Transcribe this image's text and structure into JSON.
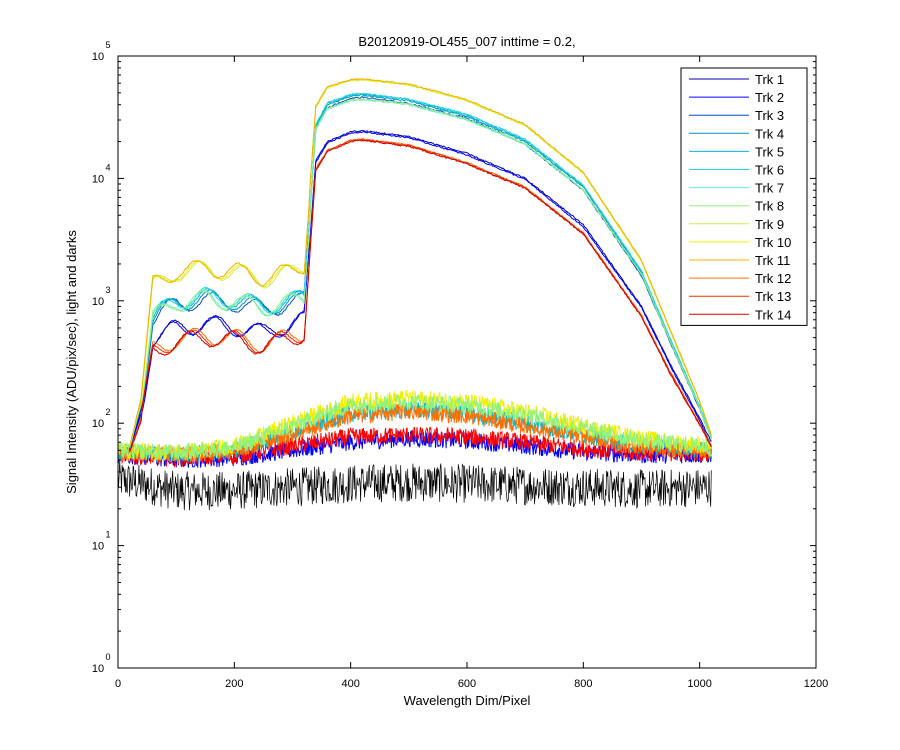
{
  "chart_data": {
    "type": "line",
    "title": "B20120919-OL455_007 inttime = 0.2,",
    "xlabel": "Wavelength Dim/Pixel",
    "ylabel": "Signal Intensity (ADU/pix/sec), light and darks",
    "xlim": [
      0,
      1200
    ],
    "ylim": [
      1,
      100000
    ],
    "yscale": "log",
    "xticks": [
      "0",
      "200",
      "400",
      "600",
      "800",
      "1000",
      "1200"
    ],
    "yticks": [
      {
        "base": "10",
        "exp": "0"
      },
      {
        "base": "10",
        "exp": "1"
      },
      {
        "base": "10",
        "exp": "2"
      },
      {
        "base": "10",
        "exp": "3"
      },
      {
        "base": "10",
        "exp": "4"
      },
      {
        "base": "10",
        "exp": "5"
      }
    ],
    "grid": false,
    "legend_position": "top-right",
    "colors": {
      "Trk 1": "#0000b0",
      "Trk 2": "#0000ff",
      "Trk 3": "#0050c8",
      "Trk 4": "#0090c0",
      "Trk 5": "#00b8d0",
      "Trk 6": "#20d8e0",
      "Trk 7": "#60f0d8",
      "Trk 8": "#90f080",
      "Trk 9": "#c8f050",
      "Trk 10": "#f0f000",
      "Trk 11": "#f0b000",
      "Trk 12": "#ff7000",
      "Trk 13": "#f03000",
      "Trk 14": "#d00000",
      "darks": "#000000"
    },
    "series": [
      {
        "name": "Trk 1",
        "x": [
          20,
          40,
          60,
          100,
          150,
          200,
          250,
          300,
          320,
          340,
          360,
          400,
          420,
          500,
          600,
          700,
          800,
          900,
          950,
          1000,
          1020
        ],
        "y": [
          60,
          130,
          500,
          600,
          650,
          620,
          550,
          650,
          700,
          14000,
          20000,
          24000,
          24500,
          22000,
          16000,
          10000,
          4200,
          900,
          300,
          110,
          70
        ]
      },
      {
        "name": "Trk 2",
        "x": [
          20,
          40,
          60,
          100,
          150,
          200,
          250,
          300,
          320,
          340,
          360,
          400,
          420,
          500,
          600,
          700,
          800,
          900,
          950,
          1000,
          1020
        ],
        "y": [
          60,
          120,
          480,
          590,
          640,
          600,
          540,
          640,
          690,
          13500,
          19500,
          23500,
          24000,
          21500,
          15500,
          9800,
          4000,
          880,
          290,
          105,
          65
        ]
      },
      {
        "name": "Trk 3",
        "x": [
          20,
          40,
          60,
          100,
          150,
          200,
          250,
          300,
          320,
          340,
          360,
          400,
          420,
          500,
          600,
          700,
          800,
          900,
          950,
          1000,
          1020
        ],
        "y": [
          62,
          140,
          700,
          950,
          1000,
          950,
          850,
          950,
          1000,
          25000,
          38000,
          45000,
          46000,
          41000,
          31000,
          19000,
          8000,
          1600,
          450,
          130,
          75
        ]
      },
      {
        "name": "Trk 4",
        "x": [
          20,
          40,
          60,
          100,
          150,
          200,
          250,
          300,
          320,
          340,
          360,
          400,
          420,
          500,
          600,
          700,
          800,
          900,
          950,
          1000,
          1020
        ],
        "y": [
          62,
          145,
          720,
          980,
          1050,
          990,
          880,
          980,
          1050,
          26000,
          40000,
          47000,
          48000,
          43000,
          32000,
          20000,
          8500,
          1700,
          470,
          135,
          75
        ]
      },
      {
        "name": "Trk 5",
        "x": [
          20,
          40,
          60,
          100,
          150,
          200,
          250,
          300,
          320,
          340,
          360,
          400,
          420,
          500,
          600,
          700,
          800,
          900,
          950,
          1000,
          1020
        ],
        "y": [
          63,
          150,
          740,
          1000,
          1080,
          1020,
          900,
          1000,
          1080,
          27000,
          41000,
          48000,
          49000,
          44000,
          33000,
          20500,
          8700,
          1750,
          480,
          138,
          76
        ]
      },
      {
        "name": "Trk 6",
        "x": [
          20,
          40,
          60,
          100,
          150,
          200,
          250,
          300,
          320,
          340,
          360,
          400,
          420,
          500,
          600,
          700,
          800,
          900,
          950,
          1000,
          1020
        ],
        "y": [
          63,
          150,
          750,
          1010,
          1090,
          1030,
          910,
          1010,
          1090,
          27500,
          41500,
          48500,
          49500,
          44500,
          33500,
          21000,
          8800,
          1760,
          485,
          139,
          76
        ]
      },
      {
        "name": "Trk 7",
        "x": [
          20,
          40,
          60,
          100,
          150,
          200,
          250,
          300,
          320,
          340,
          360,
          400,
          420,
          500,
          600,
          700,
          800,
          900,
          950,
          1000,
          1020
        ],
        "y": [
          63,
          145,
          720,
          960,
          1030,
          970,
          870,
          970,
          1030,
          25000,
          37000,
          43000,
          44000,
          40000,
          30000,
          19000,
          8000,
          1650,
          460,
          132,
          74
        ]
      },
      {
        "name": "Trk 8",
        "x": [
          20,
          40,
          60,
          100,
          150,
          200,
          250,
          300,
          320,
          340,
          360,
          400,
          420,
          500,
          600,
          700,
          800,
          900,
          950,
          1000,
          1020
        ],
        "y": [
          63,
          145,
          730,
          970,
          1040,
          980,
          880,
          980,
          1040,
          25500,
          37500,
          43500,
          44500,
          40500,
          30500,
          19300,
          8100,
          1660,
          462,
          133,
          74
        ]
      },
      {
        "name": "Trk 9",
        "x": [
          20,
          40,
          60,
          100,
          150,
          200,
          250,
          300,
          320,
          340,
          360,
          400,
          420,
          500,
          600,
          700,
          800,
          900,
          950,
          1000,
          1020
        ],
        "y": [
          64,
          160,
          1300,
          1700,
          1800,
          1700,
          1500,
          1700,
          1900,
          38000,
          55000,
          63000,
          64000,
          58000,
          43000,
          27000,
          11000,
          2100,
          560,
          150,
          80
        ]
      },
      {
        "name": "Trk 10",
        "x": [
          20,
          40,
          60,
          100,
          150,
          200,
          250,
          300,
          320,
          340,
          360,
          400,
          420,
          500,
          600,
          700,
          800,
          900,
          950,
          1000,
          1020
        ],
        "y": [
          64,
          160,
          1320,
          1720,
          1820,
          1720,
          1520,
          1720,
          1920,
          38500,
          55500,
          63500,
          64500,
          58500,
          43500,
          27300,
          11100,
          2120,
          565,
          151,
          80
        ]
      },
      {
        "name": "Trk 11",
        "x": [
          20,
          40,
          60,
          100,
          150,
          200,
          250,
          300,
          320,
          340,
          360,
          400,
          420,
          500,
          600,
          700,
          800,
          900,
          950,
          1000,
          1020
        ],
        "y": [
          64,
          165,
          1350,
          1750,
          1850,
          1750,
          1550,
          1750,
          1950,
          39000,
          56000,
          64000,
          65000,
          59000,
          44000,
          27500,
          11200,
          2150,
          570,
          152,
          80
        ]
      },
      {
        "name": "Trk 12",
        "x": [
          20,
          40,
          60,
          100,
          150,
          200,
          250,
          300,
          320,
          340,
          360,
          400,
          420,
          500,
          600,
          700,
          800,
          900,
          950,
          1000,
          1020
        ],
        "y": [
          58,
          110,
          400,
          480,
          520,
          500,
          440,
          520,
          560,
          12000,
          17000,
          20500,
          21000,
          18800,
          13500,
          8500,
          3600,
          760,
          260,
          100,
          65
        ]
      },
      {
        "name": "Trk 13",
        "x": [
          20,
          40,
          60,
          100,
          150,
          200,
          250,
          300,
          320,
          340,
          360,
          400,
          420,
          500,
          600,
          700,
          800,
          900,
          950,
          1000,
          1020
        ],
        "y": [
          58,
          110,
          390,
          470,
          510,
          490,
          430,
          510,
          550,
          11800,
          16800,
          20300,
          20800,
          18600,
          13300,
          8400,
          3550,
          750,
          255,
          98,
          64
        ]
      },
      {
        "name": "Trk 14",
        "x": [
          20,
          40,
          60,
          100,
          150,
          200,
          250,
          300,
          320,
          340,
          360,
          400,
          420,
          500,
          600,
          700,
          800,
          900,
          950,
          1000,
          1020
        ],
        "y": [
          58,
          105,
          380,
          460,
          500,
          480,
          420,
          500,
          540,
          11500,
          16500,
          20000,
          20500,
          18300,
          13100,
          8300,
          3500,
          740,
          250,
          97,
          64
        ]
      }
    ],
    "darks": [
      {
        "color": "#000000",
        "x": [
          0,
          100,
          200,
          300,
          400,
          500,
          600,
          700,
          800,
          900,
          1020
        ],
        "y": [
          35,
          28,
          28,
          30,
          32,
          33,
          32,
          31,
          30,
          29,
          30
        ]
      },
      {
        "color": "#0000ff",
        "x": [
          0,
          100,
          200,
          300,
          400,
          500,
          600,
          700,
          800,
          900,
          1020
        ],
        "y": [
          55,
          50,
          52,
          60,
          70,
          75,
          72,
          65,
          58,
          55,
          55
        ]
      },
      {
        "color": "#ff0000",
        "x": [
          0,
          100,
          200,
          300,
          400,
          500,
          600,
          700,
          800,
          900,
          1020
        ],
        "y": [
          55,
          52,
          54,
          65,
          78,
          80,
          78,
          70,
          62,
          57,
          57
        ]
      },
      {
        "color": "#00b8d0",
        "x": [
          0,
          100,
          200,
          300,
          400,
          500,
          600,
          700,
          800,
          900,
          1020
        ],
        "y": [
          58,
          55,
          60,
          85,
          120,
          130,
          120,
          100,
          80,
          65,
          60
        ]
      },
      {
        "color": "#ff7000",
        "x": [
          0,
          100,
          200,
          300,
          400,
          500,
          600,
          700,
          800,
          900,
          1020
        ],
        "y": [
          58,
          55,
          60,
          82,
          115,
          125,
          115,
          95,
          78,
          63,
          60
        ]
      },
      {
        "color": "#f0f000",
        "x": [
          0,
          100,
          200,
          300,
          400,
          500,
          600,
          700,
          800,
          900,
          1020
        ],
        "y": [
          60,
          58,
          65,
          100,
          150,
          160,
          150,
          125,
          95,
          75,
          65
        ]
      },
      {
        "color": "#90f080",
        "x": [
          0,
          100,
          200,
          300,
          400,
          500,
          600,
          700,
          800,
          900,
          1020
        ],
        "y": [
          60,
          57,
          63,
          95,
          140,
          150,
          140,
          118,
          90,
          72,
          63
        ]
      }
    ]
  }
}
